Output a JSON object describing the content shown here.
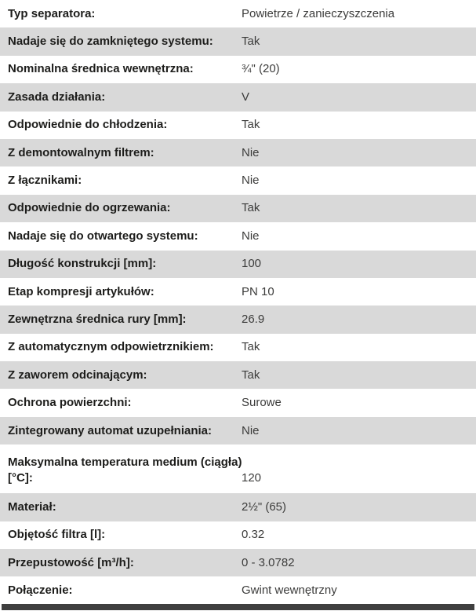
{
  "colors": {
    "row_bg": "#ffffff",
    "row_alt_bg": "#d9d9d9",
    "label_color": "#1d1d1b",
    "value_color": "#3c3c3b",
    "bottom_bar": "#3f3f3f"
  },
  "table": {
    "rows": [
      {
        "label": "Typ separatora:",
        "value": "Powietrze / zanieczyszczenia"
      },
      {
        "label": "Nadaje się do zamkniętego systemu:",
        "value": "Tak"
      },
      {
        "label": "Nominalna średnica wewnętrzna:",
        "value": "¾\" (20)"
      },
      {
        "label": "Zasada działania:",
        "value": "V"
      },
      {
        "label": "Odpowiednie do chłodzenia:",
        "value": "Tak"
      },
      {
        "label": "Z demontowalnym filtrem:",
        "value": "Nie"
      },
      {
        "label": "Z łącznikami:",
        "value": "Nie"
      },
      {
        "label": "Odpowiednie do ogrzewania:",
        "value": "Tak"
      },
      {
        "label": "Nadaje się do otwartego systemu:",
        "value": "Nie"
      },
      {
        "label": "Długość konstrukcji [mm]:",
        "value": "100"
      },
      {
        "label": "Etap kompresji artykułów:",
        "value": "PN 10"
      },
      {
        "label": "Zewnętrzna średnica rury [mm]:",
        "value": "26.9"
      },
      {
        "label": "Z automatycznym odpowietrznikiem:",
        "value": "Tak"
      },
      {
        "label": "Z zaworem odcinającym:",
        "value": "Tak"
      },
      {
        "label": "Ochrona powierzchni:",
        "value": "Surowe"
      },
      {
        "label": "Zintegrowany automat uzupełniania:",
        "value": "Nie"
      },
      {
        "label": "Maksymalna temperatura medium (ciągła) [°C]:",
        "value": "120"
      },
      {
        "label": "Materiał:",
        "value": "2½\" (65)"
      },
      {
        "label": "Objętość filtra [l]:",
        "value": "0.32"
      },
      {
        "label": "Przepustowość [m³/h]:",
        "value": "0 - 3.0782"
      },
      {
        "label": "Połączenie:",
        "value": "Gwint wewnętrzny"
      }
    ]
  }
}
